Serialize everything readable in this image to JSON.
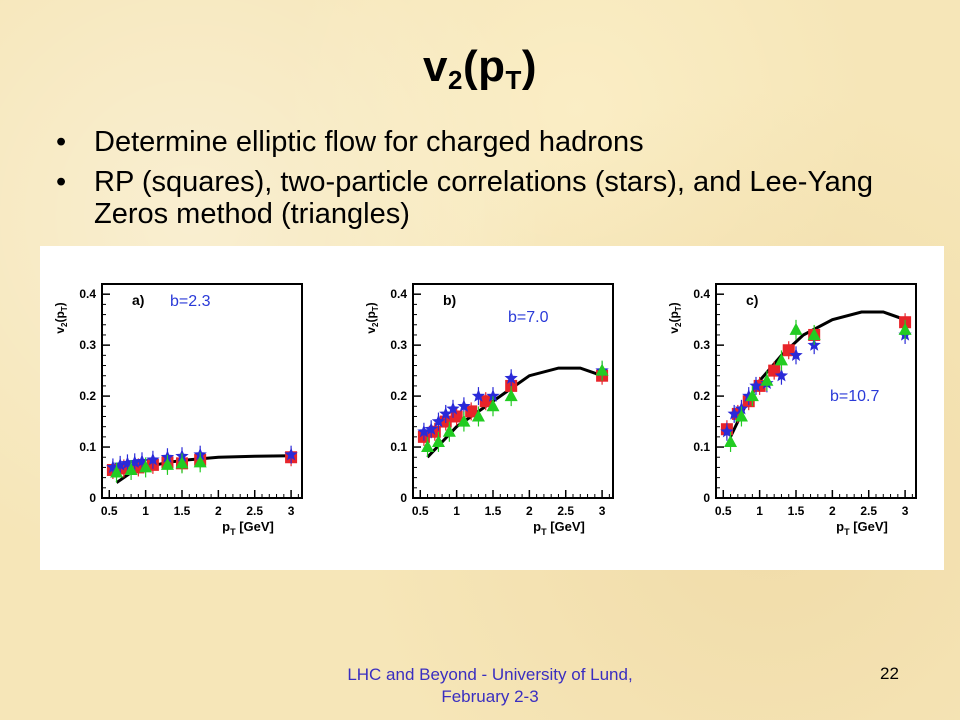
{
  "slide": {
    "title_main": "v",
    "title_sub": "2",
    "title_open": "(p",
    "title_sub2": "T",
    "title_close": ")",
    "bullets": [
      "Determine elliptic flow for charged hadrons",
      "RP (squares), two-particle correlations (stars), and Lee-Yang Zeros method (triangles)"
    ],
    "bullet_glyph": "•",
    "footer_line1": "LHC and Beyond - University of Lund,",
    "footer_line2": "February 2-3",
    "page_number": "22"
  },
  "colors": {
    "squares": "#e8242a",
    "stars": "#2a2ad8",
    "triangles": "#22cc22",
    "curve": "#000000",
    "label": "#2a3ad8"
  },
  "chart_data": [
    {
      "type": "scatter",
      "panel_label": "a)",
      "annotation": "b=2.3",
      "ylabel_main": "v",
      "ylabel_sub": "2",
      "ylabel_paren": "(p",
      "ylabel_sub2": "T",
      "ylabel_close": ")",
      "xlabel_main": "p",
      "xlabel_sub": "T",
      "xlabel_unit": "[GeV]",
      "xlim": [
        0.4,
        3.15
      ],
      "ylim": [
        0,
        0.42
      ],
      "xticks": [
        "0.5",
        "1",
        "1.5",
        "2",
        "2.5",
        "3"
      ],
      "yticks": [
        "0",
        "0.1",
        "0.2",
        "0.3",
        "0.4"
      ],
      "curve": {
        "x": [
          0.6,
          0.8,
          1.0,
          1.3,
          1.6,
          2.0,
          2.5,
          3.0
        ],
        "y": [
          0.03,
          0.05,
          0.06,
          0.07,
          0.075,
          0.08,
          0.082,
          0.083
        ]
      },
      "series": [
        {
          "name": "RP (squares)",
          "marker": "square",
          "x": [
            0.55,
            0.7,
            0.9,
            1.1,
            1.3,
            1.5,
            1.75,
            3.0
          ],
          "y": [
            0.055,
            0.058,
            0.06,
            0.065,
            0.07,
            0.068,
            0.075,
            0.08
          ]
        },
        {
          "name": "two-particle correlations (stars)",
          "marker": "star",
          "x": [
            0.55,
            0.65,
            0.75,
            0.85,
            0.95,
            1.1,
            1.3,
            1.5,
            1.75,
            3.0
          ],
          "y": [
            0.06,
            0.065,
            0.068,
            0.07,
            0.072,
            0.075,
            0.08,
            0.082,
            0.085,
            0.085
          ]
        },
        {
          "name": "Lee-Yang Zeros method (triangles)",
          "marker": "triangle",
          "x": [
            0.6,
            0.8,
            1.0,
            1.3,
            1.5,
            1.75
          ],
          "y": [
            0.05,
            0.055,
            0.06,
            0.065,
            0.068,
            0.07
          ]
        }
      ]
    },
    {
      "type": "scatter",
      "panel_label": "b)",
      "annotation": "b=7.0",
      "ylabel_main": "v",
      "ylabel_sub": "2",
      "ylabel_paren": "(p",
      "ylabel_sub2": "T",
      "ylabel_close": ")",
      "xlabel_main": "p",
      "xlabel_sub": "T",
      "xlabel_unit": "[GeV]",
      "xlim": [
        0.4,
        3.15
      ],
      "ylim": [
        0,
        0.42
      ],
      "xticks": [
        "0.5",
        "1",
        "1.5",
        "2",
        "2.5",
        "3"
      ],
      "yticks": [
        "0",
        "0.1",
        "0.2",
        "0.3",
        "0.4"
      ],
      "curve": {
        "x": [
          0.6,
          0.8,
          1.0,
          1.3,
          1.6,
          2.0,
          2.4,
          2.7,
          3.0
        ],
        "y": [
          0.08,
          0.11,
          0.14,
          0.17,
          0.2,
          0.24,
          0.255,
          0.255,
          0.24
        ]
      },
      "series": [
        {
          "name": "RP (squares)",
          "marker": "square",
          "x": [
            0.55,
            0.7,
            0.85,
            1.0,
            1.2,
            1.4,
            1.75,
            3.0
          ],
          "y": [
            0.12,
            0.13,
            0.15,
            0.16,
            0.17,
            0.19,
            0.22,
            0.24
          ]
        },
        {
          "name": "two-particle correlations (stars)",
          "marker": "star",
          "x": [
            0.55,
            0.65,
            0.75,
            0.85,
            0.95,
            1.1,
            1.3,
            1.5,
            1.75,
            3.0
          ],
          "y": [
            0.13,
            0.135,
            0.15,
            0.165,
            0.175,
            0.18,
            0.2,
            0.2,
            0.235,
            0.25
          ]
        },
        {
          "name": "Lee-Yang Zeros method (triangles)",
          "marker": "triangle",
          "x": [
            0.6,
            0.75,
            0.9,
            1.1,
            1.3,
            1.5,
            1.75,
            3.0
          ],
          "y": [
            0.1,
            0.11,
            0.13,
            0.15,
            0.16,
            0.18,
            0.2,
            0.25
          ]
        }
      ]
    },
    {
      "type": "scatter",
      "panel_label": "c)",
      "annotation": "b=10.7",
      "ylabel_main": "v",
      "ylabel_sub": "2",
      "ylabel_paren": "(p",
      "ylabel_sub2": "T",
      "ylabel_close": ")",
      "xlabel_main": "p",
      "xlabel_sub": "T",
      "xlabel_unit": "[GeV]",
      "xlim": [
        0.4,
        3.15
      ],
      "ylim": [
        0,
        0.42
      ],
      "xticks": [
        "0.5",
        "1",
        "1.5",
        "2",
        "2.5",
        "3"
      ],
      "yticks": [
        "0",
        "0.1",
        "0.2",
        "0.3",
        "0.4"
      ],
      "curve": {
        "x": [
          0.6,
          0.8,
          1.0,
          1.3,
          1.6,
          2.0,
          2.4,
          2.7,
          3.0
        ],
        "y": [
          0.12,
          0.18,
          0.23,
          0.28,
          0.32,
          0.35,
          0.365,
          0.365,
          0.35
        ]
      },
      "series": [
        {
          "name": "RP (squares)",
          "marker": "square",
          "x": [
            0.55,
            0.7,
            0.85,
            1.0,
            1.2,
            1.4,
            1.75,
            3.0
          ],
          "y": [
            0.135,
            0.165,
            0.19,
            0.22,
            0.25,
            0.29,
            0.32,
            0.345
          ]
        },
        {
          "name": "two-particle correlations (stars)",
          "marker": "star",
          "x": [
            0.55,
            0.65,
            0.75,
            0.85,
            0.95,
            1.1,
            1.3,
            1.5,
            1.75,
            3.0
          ],
          "y": [
            0.13,
            0.165,
            0.175,
            0.2,
            0.22,
            0.225,
            0.24,
            0.28,
            0.3,
            0.32
          ]
        },
        {
          "name": "Lee-Yang Zeros method (triangles)",
          "marker": "triangle",
          "x": [
            0.6,
            0.75,
            0.9,
            1.1,
            1.3,
            1.5,
            1.75,
            3.0
          ],
          "y": [
            0.11,
            0.16,
            0.2,
            0.23,
            0.27,
            0.33,
            0.32,
            0.33
          ]
        }
      ]
    }
  ]
}
